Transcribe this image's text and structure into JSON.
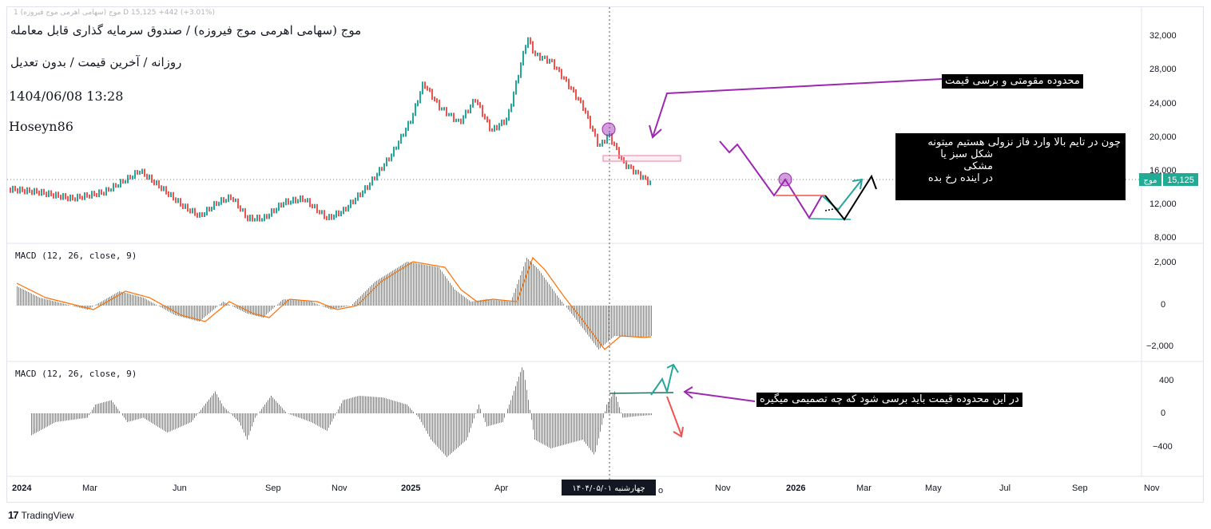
{
  "header": {
    "top_faint": "1 موج (سهامی اهرمی موج فیروزه) D 15,125 +442 (+3.01%)",
    "title": "موج (سهامی اهرمی موج فیروزه) / صندوق سرمایه گذاری قابل معامله",
    "subtitle": "روزانه / آخرین قیمت / بدون تعدیل",
    "datetime": "1404/06/08 13:28",
    "author": "Hoseyn86"
  },
  "price_pane": {
    "y_ticks": [
      "32,000",
      "28,000",
      "24,000",
      "20,000",
      "16,000",
      "12,000",
      "8,000"
    ],
    "symbol_tag": "موج",
    "last_price": "15,125",
    "colors": {
      "up": "#26a69a",
      "down": "#ef5350",
      "tag": "#22ab94"
    }
  },
  "macd1": {
    "label": "MACD (12, 26, close, 9)",
    "y_ticks": [
      "2,000",
      "0",
      "−2,000"
    ],
    "colors": {
      "hist": "#2a9ee8",
      "signal": "#ff6d00"
    }
  },
  "macd2": {
    "label": "MACD (12, 26, close, 9)",
    "y_ticks": [
      "400",
      "0",
      "−400"
    ],
    "colors": {
      "pos": "#26a69a",
      "neg": "#ef5350"
    }
  },
  "time_axis": {
    "labels": [
      "2024",
      "Mar",
      "Jun",
      "Sep",
      "Nov",
      "2025",
      "Apr",
      "Nov",
      "2026",
      "Mar",
      "May",
      "Jul",
      "Sep",
      "Nov"
    ],
    "cursor_label": "چهارشنبه ۱۴۰۴/۰۵/۰۱",
    "cursor_tail": "o"
  },
  "annotations": {
    "resistance_note": "محدوده مقومتی و برسی قیمت",
    "scenario_note": [
      "چون در تایم بالا وارد فاز نزولی هستیم میتونه",
      "شکل سبز یا",
      "مشکی",
      "در اینده رخ بده"
    ],
    "decision_note": "در این محدوده قیمت باید برسی شود که چه تصمیمی میگیره",
    "colors": {
      "purple": "#9c27b0",
      "green": "#26a69a",
      "red": "#ef5350",
      "black": "#000000",
      "pink": "#f48fb1"
    }
  },
  "footer": {
    "brand": "TradingView"
  }
}
